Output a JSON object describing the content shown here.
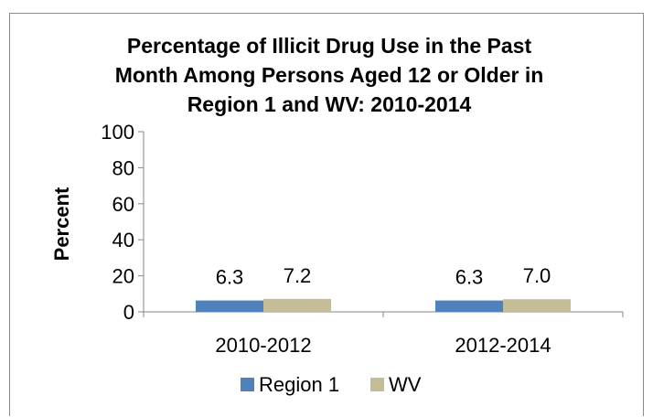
{
  "chart_data": {
    "type": "bar",
    "title": "Percentage of Illicit Drug Use in the Past Month Among Persons Aged 12 or Older in Region 1 and WV: 2010-2014",
    "title_lines": [
      "Percentage of Illicit Drug Use in the Past",
      "Month Among Persons Aged 12 or Older in",
      "Region 1 and WV: 2010-2014"
    ],
    "ylabel": "Percent",
    "xlabel": "",
    "ylim": [
      0,
      100
    ],
    "yticks": [
      0,
      20,
      40,
      60,
      80,
      100
    ],
    "categories": [
      "2010-2012",
      "2012-2014"
    ],
    "series": [
      {
        "name": "Region 1",
        "values": [
          6.3,
          6.3
        ],
        "labels": [
          "6.3",
          "6.3"
        ],
        "color": "#4f81bd"
      },
      {
        "name": "WV",
        "values": [
          7.2,
          7.0
        ],
        "labels": [
          "7.2",
          "7.0"
        ],
        "color": "#c4bd97"
      }
    ],
    "legend_position": "bottom",
    "grid": false
  }
}
